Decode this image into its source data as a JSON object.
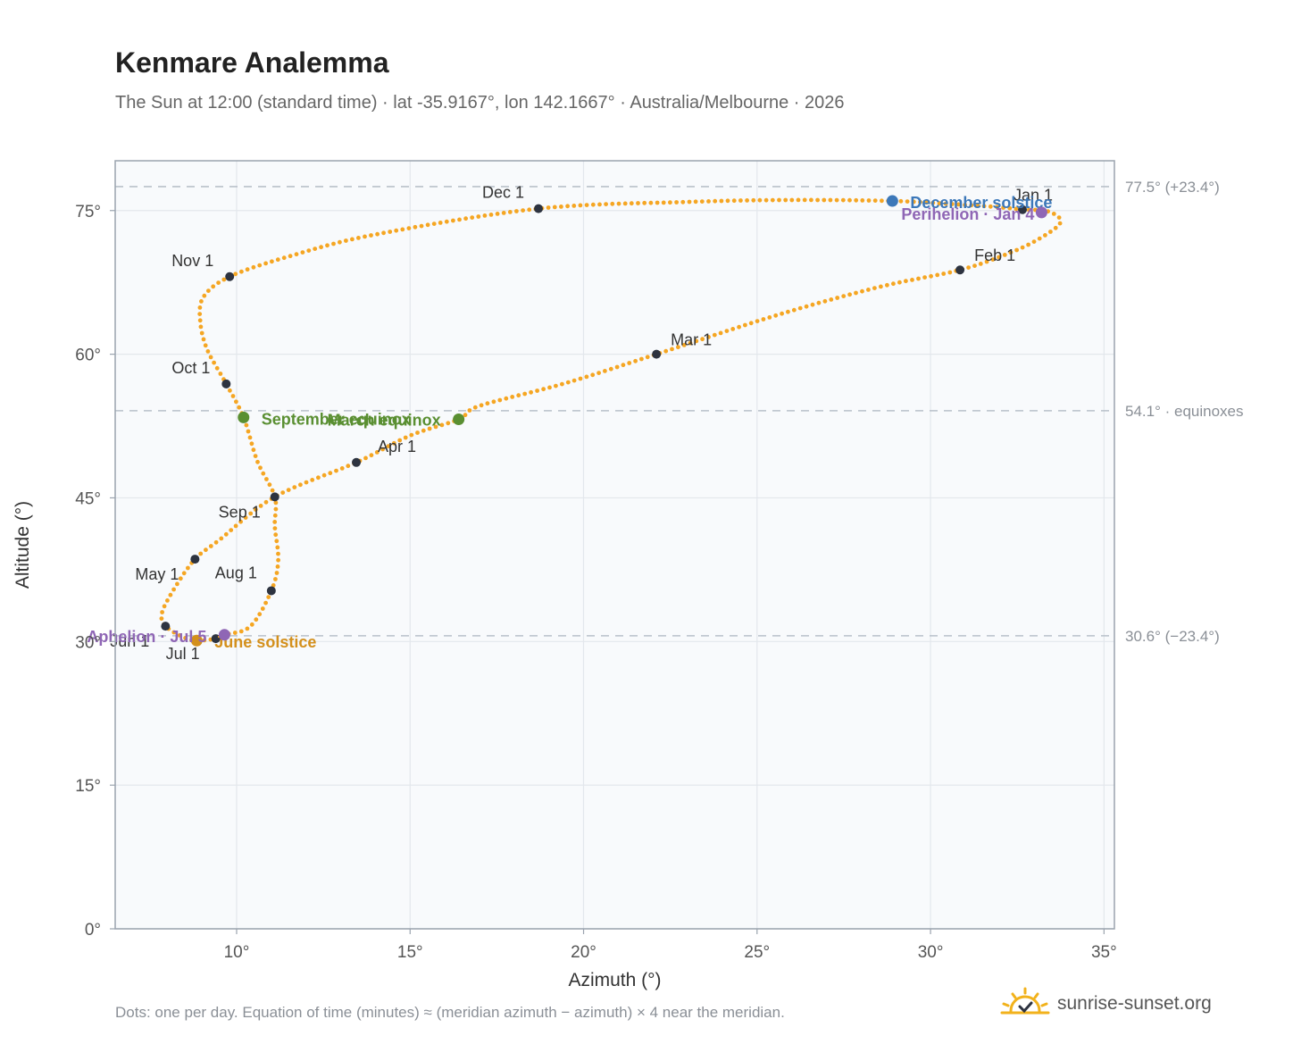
{
  "title": "Kenmare Analemma",
  "subtitle": "The Sun at 12:00 (standard time) · lat -35.9167°, lon 142.1667° · Australia/Melbourne · 2026",
  "footnote": "Dots: one per day. Equation of time (minutes) ≈ (meridian azimuth − azimuth) × 4 near the meridian.",
  "brand": "sunrise-sunset.org",
  "colors": {
    "curve": "#f5a623",
    "month_marker": "#2d3340",
    "solstice_december": "#3c78b9",
    "solstice_june": "#d4901c",
    "equinox": "#5a8f32",
    "apsis": "#8f66b5",
    "plot_bg": "#f8fafc",
    "grid": "#e3e7ec",
    "frame": "#9aa3ae",
    "ref_line": "#b9c1ca"
  },
  "chart_data": {
    "type": "scatter",
    "xlabel": "Azimuth (°)",
    "ylabel": "Altitude (°)",
    "xlim": [
      6.5,
      35.3
    ],
    "ylim": [
      0,
      80.2
    ],
    "xticks": [
      10,
      15,
      20,
      25,
      30,
      35
    ],
    "yticks": [
      0,
      15,
      30,
      45,
      60,
      75
    ],
    "xtick_labels": [
      "10°",
      "15°",
      "20°",
      "25°",
      "30°",
      "35°"
    ],
    "ytick_labels": [
      "0°",
      "15°",
      "30°",
      "45°",
      "60°",
      "75°"
    ],
    "grid": true,
    "reference_lines": [
      {
        "y": 77.5,
        "label": "77.5° (+23.4°)"
      },
      {
        "y": 54.1,
        "label": "54.1° · equinoxes"
      },
      {
        "y": 30.6,
        "label": "30.6° (−23.4°)"
      }
    ],
    "month_markers": [
      {
        "label": "Jan 1",
        "az": 32.65,
        "alt": 75.1
      },
      {
        "label": "Feb 1",
        "az": 30.85,
        "alt": 68.8
      },
      {
        "label": "Mar 1",
        "az": 22.1,
        "alt": 60.0
      },
      {
        "label": "Apr 1",
        "az": 13.45,
        "alt": 48.7
      },
      {
        "label": "May 1",
        "az": 8.8,
        "alt": 38.6
      },
      {
        "label": "Jun 1",
        "az": 7.95,
        "alt": 31.6
      },
      {
        "label": "Jul 1",
        "az": 9.4,
        "alt": 30.3
      },
      {
        "label": "Aug 1",
        "az": 11.0,
        "alt": 35.3
      },
      {
        "label": "Sep 1",
        "az": 11.1,
        "alt": 45.1
      },
      {
        "label": "Oct 1",
        "az": 9.7,
        "alt": 56.9
      },
      {
        "label": "Nov 1",
        "az": 9.8,
        "alt": 68.1
      },
      {
        "label": "Dec 1",
        "az": 18.7,
        "alt": 75.2
      }
    ],
    "events": [
      {
        "label": "December solstice",
        "az": 28.9,
        "alt": 76.0,
        "kind": "solstice_december"
      },
      {
        "label": "Perihelion · Jan 4",
        "az": 33.2,
        "alt": 74.8,
        "kind": "apsis"
      },
      {
        "label": "March equinox",
        "az": 16.4,
        "alt": 53.2,
        "kind": "equinox"
      },
      {
        "label": "September equinox",
        "az": 10.2,
        "alt": 53.4,
        "kind": "equinox"
      },
      {
        "label": "June solstice",
        "az": 8.85,
        "alt": 30.1,
        "kind": "solstice_june"
      },
      {
        "label": "Aphelion · Jul 5",
        "az": 9.65,
        "alt": 30.7,
        "kind": "apsis"
      }
    ],
    "curve_points": [
      [
        32.65,
        75.1
      ],
      [
        33.4,
        74.9
      ],
      [
        33.75,
        73.8
      ],
      [
        33.2,
        72.2
      ],
      [
        32.3,
        70.6
      ],
      [
        30.85,
        68.8
      ],
      [
        28.5,
        67.0
      ],
      [
        25.5,
        64.0
      ],
      [
        22.1,
        60.0
      ],
      [
        19.5,
        57.0
      ],
      [
        17.0,
        54.6
      ],
      [
        16.4,
        53.2
      ],
      [
        15.0,
        51.5
      ],
      [
        13.45,
        48.7
      ],
      [
        11.1,
        45.1
      ],
      [
        9.5,
        40.6
      ],
      [
        8.8,
        38.6
      ],
      [
        8.2,
        35.5
      ],
      [
        7.85,
        33.0
      ],
      [
        7.95,
        31.6
      ],
      [
        8.5,
        30.4
      ],
      [
        8.85,
        30.1
      ],
      [
        9.4,
        30.3
      ],
      [
        9.65,
        30.7
      ],
      [
        10.4,
        31.6
      ],
      [
        11.0,
        35.3
      ],
      [
        11.2,
        38.5
      ],
      [
        11.1,
        42.0
      ],
      [
        11.1,
        45.1
      ],
      [
        10.6,
        48.8
      ],
      [
        10.2,
        53.4
      ],
      [
        9.7,
        56.9
      ],
      [
        9.15,
        60.5
      ],
      [
        8.95,
        63.5
      ],
      [
        9.05,
        66.0
      ],
      [
        9.8,
        68.1
      ],
      [
        11.5,
        70.2
      ],
      [
        14.0,
        72.5
      ],
      [
        18.7,
        75.2
      ],
      [
        23.0,
        75.9
      ],
      [
        26.0,
        76.1
      ],
      [
        28.9,
        76.0
      ],
      [
        30.5,
        75.7
      ],
      [
        31.8,
        75.4
      ],
      [
        32.65,
        75.1
      ]
    ]
  }
}
